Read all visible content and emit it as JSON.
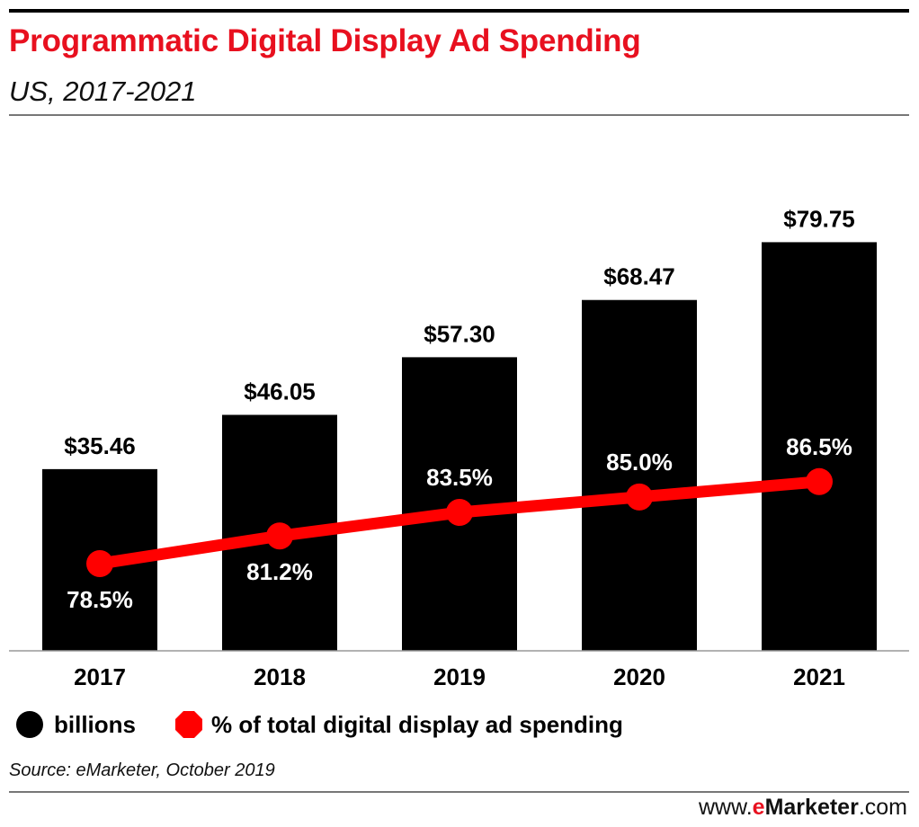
{
  "header": {
    "title": "Programmatic Digital Display Ad Spending",
    "subtitle": "US, 2017-2021"
  },
  "legend": {
    "bars_label": "billions",
    "line_label": "% of total digital display ad spending"
  },
  "footer": {
    "source": "Source: eMarketer, October 2019",
    "brand_prefix": "www.",
    "brand_e": "e",
    "brand_name": "Marketer",
    "brand_suffix": ".com"
  },
  "colors": {
    "title": "#e8101f",
    "bars": "#000000",
    "line": "#ff0000",
    "bar_label": "#000000",
    "line_label": "#ffffff"
  },
  "chart_data": {
    "type": "bar",
    "categories": [
      "2017",
      "2018",
      "2019",
      "2020",
      "2021"
    ],
    "series": [
      {
        "name": "billions",
        "type": "bar",
        "values": [
          35.46,
          46.05,
          57.3,
          68.47,
          79.75
        ],
        "labels": [
          "$35.46",
          "$46.05",
          "$57.30",
          "$68.47",
          "$79.75"
        ]
      },
      {
        "name": "% of total digital display ad spending",
        "type": "line",
        "values": [
          78.5,
          81.2,
          83.5,
          85.0,
          86.5
        ],
        "labels": [
          "78.5%",
          "81.2%",
          "83.5%",
          "85.0%",
          "86.5%"
        ],
        "label_position": [
          "below",
          "below",
          "above",
          "above",
          "above"
        ]
      }
    ],
    "ylim": [
      0,
      80
    ],
    "y2lim": [
      71,
      93
    ],
    "grid": false,
    "legend": "bottom-left"
  }
}
